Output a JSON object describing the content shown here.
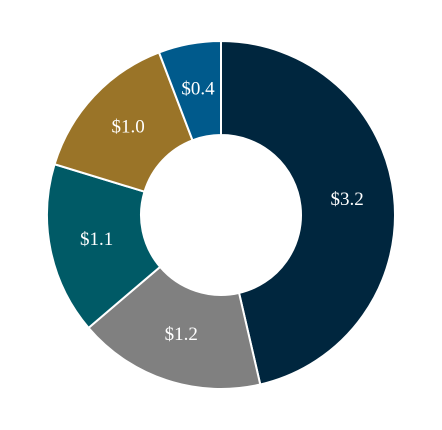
{
  "chart_data": {
    "type": "donut",
    "values": [
      3.2,
      1.2,
      1.1,
      1.0,
      0.4
    ],
    "value_labels": [
      "$3.2",
      "$1.2",
      "$1.1",
      "$1.0",
      "$0.4"
    ],
    "colors": [
      "#00263e",
      "#808080",
      "#005a66",
      "#9a7428",
      "#005a8c"
    ]
  }
}
